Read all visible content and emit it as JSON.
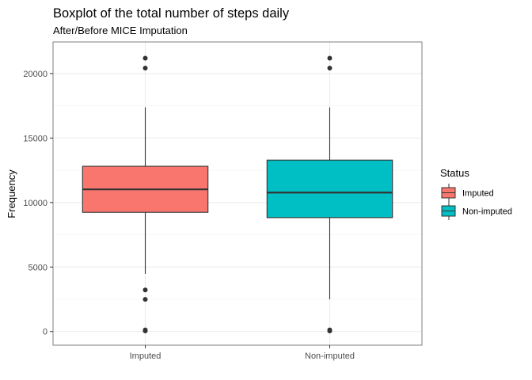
{
  "chart_data": {
    "type": "boxplot",
    "title": "Boxplot of the total number of steps daily",
    "subtitle": "After/Before MICE Imputation",
    "xlabel": "",
    "ylabel": "Frequency",
    "ylim": [
      -1060,
      22450
    ],
    "y_ticks": [
      0,
      5000,
      10000,
      15000,
      20000
    ],
    "y_tick_labels": [
      "0",
      "5000",
      "10000",
      "15000",
      "20000"
    ],
    "grid": true,
    "legend": {
      "title": "Status",
      "placement": "right",
      "entries": [
        "Imputed",
        "Non-imputed"
      ]
    },
    "categories": [
      "Imputed",
      "Non-imputed"
    ],
    "series": [
      {
        "name": "Imputed",
        "color": "#F8766D",
        "q1": 9240,
        "median": 11020,
        "q3": 12810,
        "whisker_low": 4470,
        "whisker_high": 17380,
        "outliers": [
          21194,
          20427,
          3220,
          2492,
          125,
          41
        ]
      },
      {
        "name": "Non-imputed",
        "color": "#00BFC4",
        "q1": 8830,
        "median": 10770,
        "q3": 13290,
        "whisker_low": 2492,
        "whisker_high": 17380,
        "outliers": [
          21194,
          20427,
          125,
          41
        ]
      }
    ]
  }
}
